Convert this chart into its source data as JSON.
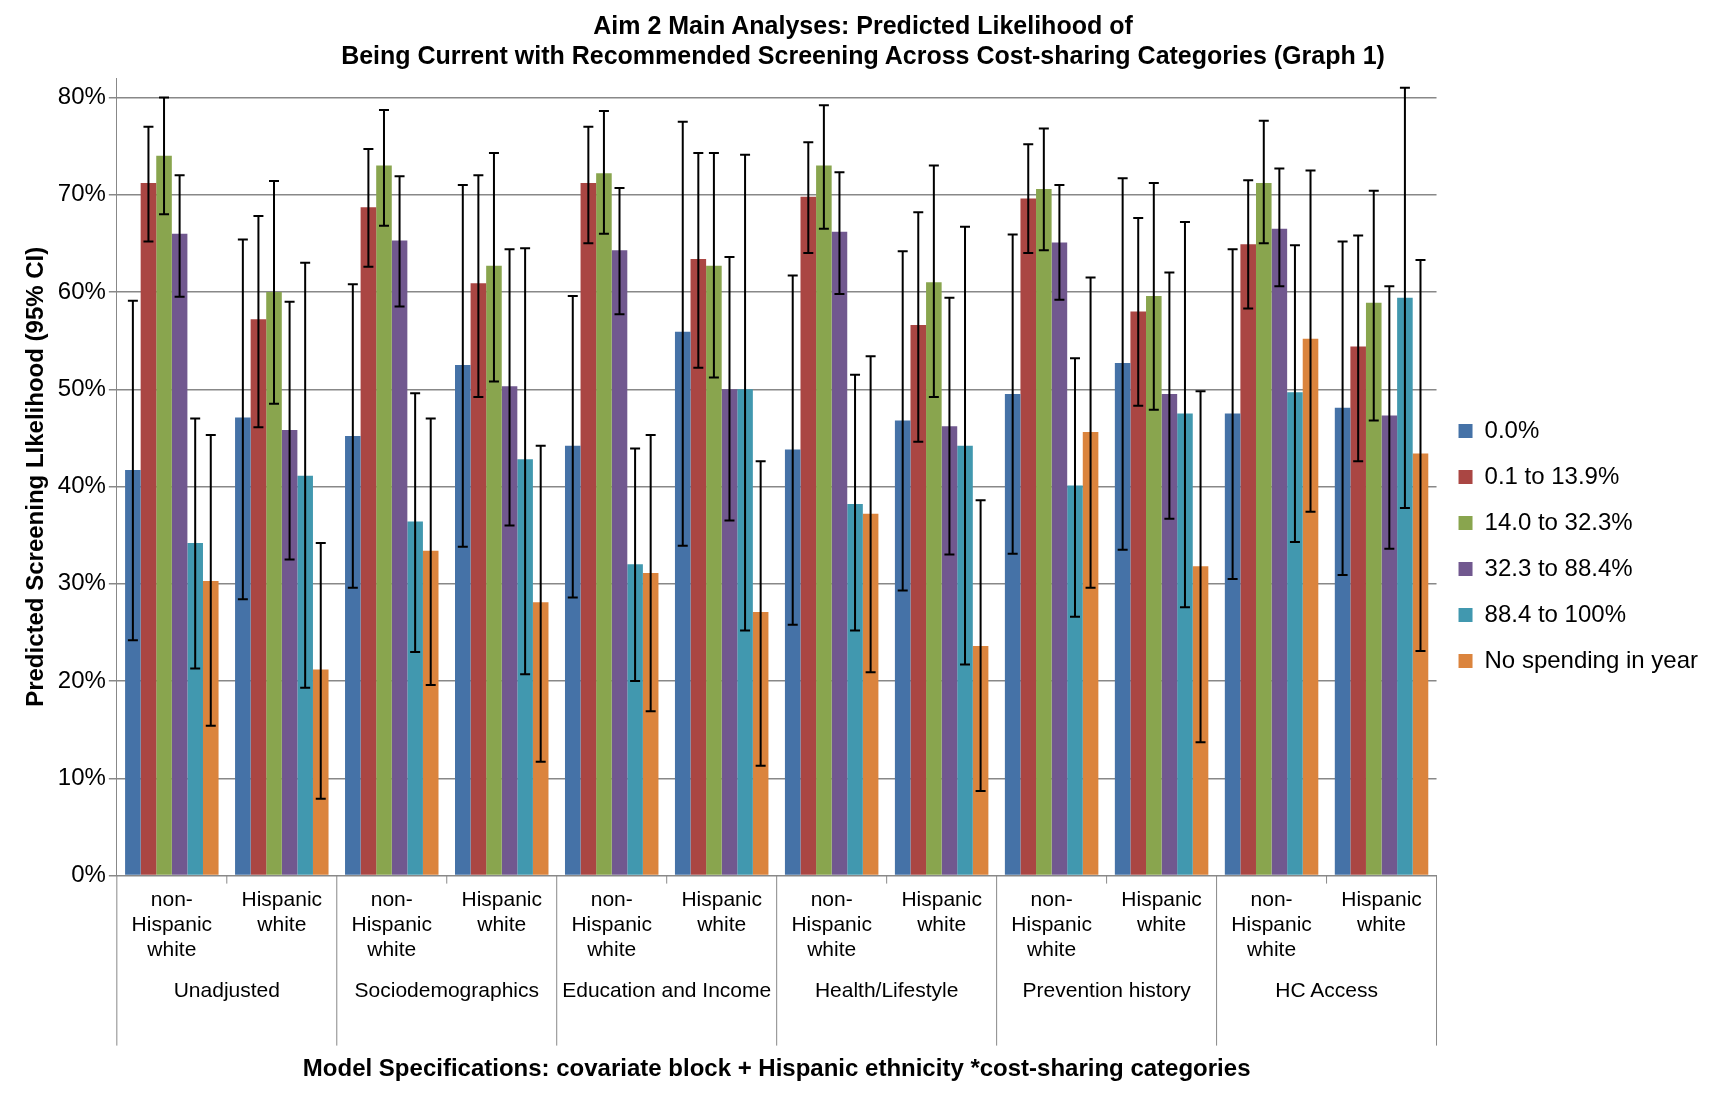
{
  "chart_data": {
    "type": "bar",
    "title": "Aim 2 Main Analyses: Predicted Likelihood of\nBeing Current with Recommended Screening Across Cost-sharing Categories (Graph 1)",
    "xlabel": "Model Specifications: covariate block + Hispanic ethnicity *cost-sharing categories",
    "ylabel": "Predicted Screening LIkelihood (95% CI)",
    "categories": [
      "non-Hispanic white",
      "Hispanic white",
      "non-Hispanic white",
      "Hispanic white",
      "non-Hispanic white",
      "Hispanic white",
      "non-Hispanic white",
      "Hispanic white",
      "non-Hispanic white",
      "Hispanic white",
      "non-Hispanic white",
      "Hispanic white"
    ],
    "annotations": [
      "Unadjusted",
      "Sociodemographics",
      "Education and Income",
      "Health/Lifestyle",
      "Prevention history",
      "HC Access"
    ],
    "series": [
      {
        "name": "0.0%",
        "color": "#4572a7",
        "values": [
          41.7,
          47.1,
          45.2,
          52.5,
          44.2,
          55.9,
          43.8,
          46.8,
          49.5,
          52.7,
          47.5,
          48.1
        ],
        "errors": [
          [
            24.2,
            59.1
          ],
          [
            28.4,
            65.4
          ],
          [
            29.6,
            60.8
          ],
          [
            33.8,
            71
          ],
          [
            28.6,
            59.6
          ],
          [
            33.9,
            77.5
          ],
          [
            25.8,
            61.7
          ],
          [
            29.3,
            64.2
          ],
          [
            33.1,
            65.9
          ],
          [
            33.5,
            71.7
          ],
          [
            30.5,
            64.4
          ],
          [
            30.9,
            65.2
          ]
        ]
      },
      {
        "name": "0.1 to 13.9%",
        "color": "#aa4643",
        "values": [
          71.2,
          57.2,
          68.7,
          60.9,
          71.2,
          63.4,
          69.8,
          56.6,
          69.6,
          58,
          64.9,
          54.4
        ],
        "errors": [
          [
            65.2,
            77
          ],
          [
            46.1,
            67.8
          ],
          [
            62.6,
            74.7
          ],
          [
            49.2,
            72
          ],
          [
            65,
            77
          ],
          [
            52.2,
            74.3
          ],
          [
            64,
            75.4
          ],
          [
            44.6,
            68.2
          ],
          [
            64,
            75.2
          ],
          [
            48.3,
            67.6
          ],
          [
            58.3,
            71.5
          ],
          [
            42.6,
            65.8
          ]
        ]
      },
      {
        "name": "14.0 to 32.3%",
        "color": "#89a54e",
        "values": [
          74,
          60,
          73,
          62.7,
          72.2,
          62.7,
          73,
          61,
          70.6,
          59.6,
          71.2,
          58.9
        ],
        "errors": [
          [
            68,
            80
          ],
          [
            48.5,
            71.4
          ],
          [
            66.8,
            78.7
          ],
          [
            50.8,
            74.3
          ],
          [
            66,
            78.6
          ],
          [
            51.2,
            74.3
          ],
          [
            66.5,
            79.2
          ],
          [
            49.2,
            73
          ],
          [
            64.3,
            76.8
          ],
          [
            47.9,
            71.2
          ],
          [
            65,
            77.6
          ],
          [
            46.8,
            70.4
          ]
        ]
      },
      {
        "name": "32.3 to 88.4%",
        "color": "#71588f",
        "values": [
          66,
          45.8,
          65.3,
          50.3,
          64.3,
          50,
          66.2,
          46.2,
          65.1,
          49.5,
          66.5,
          47.3
        ],
        "errors": [
          [
            59.5,
            72
          ],
          [
            32.5,
            59
          ],
          [
            58.5,
            71.9
          ],
          [
            36,
            64.4
          ],
          [
            57.7,
            70.7
          ],
          [
            36.5,
            63.6
          ],
          [
            59.8,
            72.3
          ],
          [
            33,
            59.4
          ],
          [
            59.2,
            71
          ],
          [
            36.7,
            62
          ],
          [
            60.6,
            72.7
          ],
          [
            33.6,
            60.6
          ]
        ]
      },
      {
        "name": "88.4 to 100%",
        "color": "#4198af",
        "values": [
          34.2,
          41.1,
          36.4,
          42.8,
          32,
          50,
          38.2,
          44.2,
          40.1,
          47.5,
          49.7,
          59.4
        ],
        "errors": [
          [
            21.3,
            47
          ],
          [
            19.3,
            63
          ],
          [
            23,
            49.6
          ],
          [
            20.7,
            64.5
          ],
          [
            20,
            43.9
          ],
          [
            25.2,
            74.1
          ],
          [
            25.2,
            51.5
          ],
          [
            21.7,
            66.7
          ],
          [
            26.6,
            53.2
          ],
          [
            27.6,
            67.2
          ],
          [
            34.3,
            64.8
          ],
          [
            37.8,
            81
          ]
        ]
      },
      {
        "name": "No spending in year",
        "color": "#db843d",
        "values": [
          30.3,
          21.2,
          33.4,
          28.1,
          31.1,
          27.1,
          37.2,
          23.6,
          45.6,
          31.8,
          55.2,
          43.4
        ],
        "errors": [
          [
            15.4,
            45.3
          ],
          [
            7.9,
            34.2
          ],
          [
            19.6,
            47
          ],
          [
            11.7,
            44.2
          ],
          [
            16.9,
            45.3
          ],
          [
            11.3,
            42.6
          ],
          [
            20.9,
            53.4
          ],
          [
            8.7,
            38.6
          ],
          [
            29.6,
            61.5
          ],
          [
            13.7,
            49.8
          ],
          [
            37.4,
            72.5
          ],
          [
            23.1,
            63.3
          ]
        ]
      }
    ],
    "ylim": [
      0,
      82
    ],
    "yticks": [
      {
        "value": 0,
        "label": "0%"
      },
      {
        "value": 10,
        "label": "10%"
      },
      {
        "value": 20,
        "label": "20%"
      },
      {
        "value": 30,
        "label": "30%"
      },
      {
        "value": 40,
        "label": "40%"
      },
      {
        "value": 50,
        "label": "50%"
      },
      {
        "value": 60,
        "label": "60%"
      },
      {
        "value": 70,
        "label": "70%"
      },
      {
        "value": 80,
        "label": "80%"
      }
    ],
    "grid": "y",
    "legend": "right"
  }
}
